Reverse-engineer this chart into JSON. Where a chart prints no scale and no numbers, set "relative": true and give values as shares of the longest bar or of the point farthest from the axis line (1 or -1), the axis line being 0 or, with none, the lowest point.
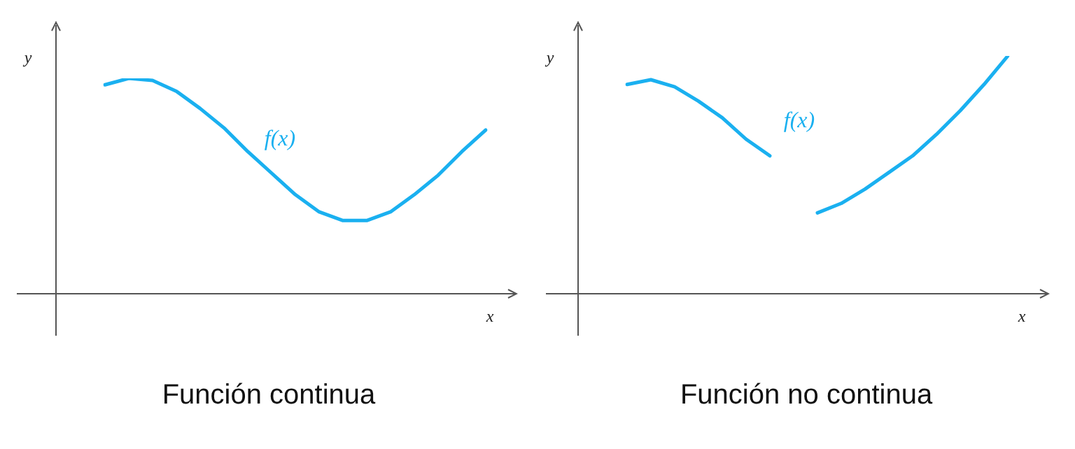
{
  "chart_data": [
    {
      "type": "line",
      "title": "Función continua",
      "xlabel": "x",
      "ylabel": "y",
      "relative": true,
      "annotations": [
        "f(x)"
      ],
      "categories": [
        null,
        null,
        null,
        null,
        null,
        null,
        null,
        null,
        null,
        null,
        null,
        null,
        null,
        null,
        null,
        null,
        null
      ],
      "series": [
        {
          "color": "#1ab0f0",
          "values": [
            0.97,
            1,
            0.99,
            0.94,
            0.86,
            0.77,
            0.66,
            0.56,
            0.46,
            0.38,
            0.34,
            0.34,
            0.38,
            0.46,
            0.55,
            0.66,
            0.76
          ]
        }
      ],
      "marker": "none",
      "grid": false
    },
    {
      "type": "line",
      "title": "Función no continua",
      "xlabel": "x",
      "ylabel": "y",
      "relative": true,
      "annotations": [
        "f(x)"
      ],
      "categories": [
        null,
        null,
        null,
        null,
        null,
        null,
        null,
        null,
        null,
        null,
        null,
        null,
        null,
        null,
        null,
        null,
        null
      ],
      "series": [
        {
          "color": "#1ab0f0",
          "values": [
            0.88,
            0.9,
            0.87,
            0.81,
            0.74,
            0.65,
            0.58,
            null,
            null,
            null,
            null,
            null,
            null,
            null,
            null,
            null,
            null
          ]
        },
        {
          "color": "#1ab0f0",
          "values": [
            null,
            null,
            null,
            null,
            null,
            null,
            null,
            null,
            0.34,
            0.38,
            0.44,
            0.51,
            0.58,
            0.67,
            0.77,
            0.88,
            1
          ]
        }
      ],
      "marker": "none",
      "grid": false
    }
  ]
}
